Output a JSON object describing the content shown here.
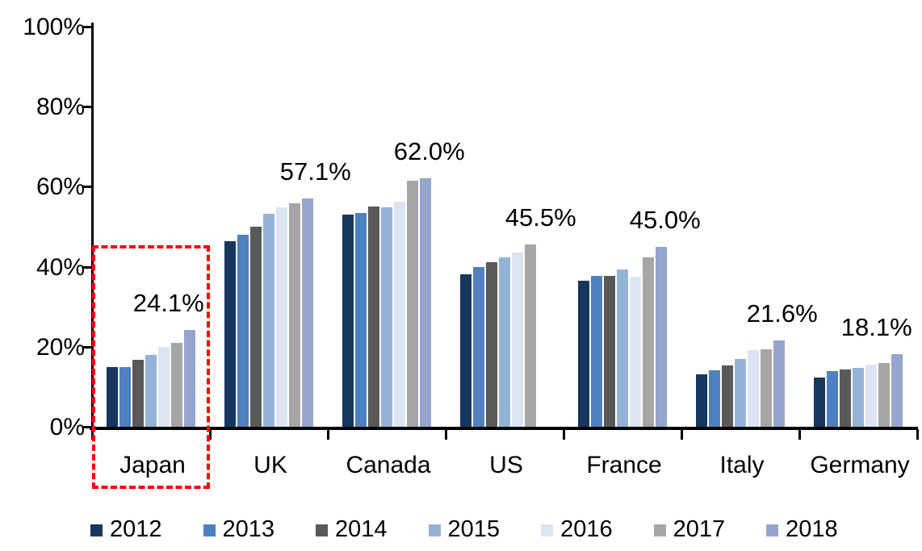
{
  "chart_data": {
    "type": "bar",
    "title": "",
    "categories": [
      "Japan",
      "UK",
      "Canada",
      "US",
      "France",
      "Italy",
      "Germany"
    ],
    "series": [
      {
        "name": "2012",
        "color": "#17375E",
        "values": [
          14.9,
          46.3,
          53.1,
          38.2,
          36.5,
          13.2,
          12.4
        ]
      },
      {
        "name": "2013",
        "color": "#4E81BD",
        "values": [
          15.0,
          47.9,
          53.5,
          39.9,
          37.8,
          14.1,
          13.9
        ]
      },
      {
        "name": "2014",
        "color": "#595959",
        "values": [
          16.7,
          50.0,
          55.1,
          41.1,
          37.7,
          15.4,
          14.4
        ]
      },
      {
        "name": "2015",
        "color": "#95B3D7",
        "values": [
          18.0,
          53.3,
          54.9,
          42.3,
          39.4,
          17.0,
          14.7
        ]
      },
      {
        "name": "2016",
        "color": "#DBE5F1",
        "values": [
          19.9,
          54.9,
          56.3,
          43.6,
          37.5,
          19.1,
          15.5
        ]
      },
      {
        "name": "2017",
        "color": "#A6A6A6",
        "values": [
          21.0,
          55.9,
          61.5,
          45.5,
          42.4,
          19.3,
          16.0
        ]
      },
      {
        "name": "2018",
        "color": "#95A5CE",
        "values": [
          24.1,
          57.1,
          62.0,
          null,
          45.0,
          21.6,
          18.1
        ]
      }
    ],
    "data_labels": [
      "24.1%",
      "57.1%",
      "62.0%",
      "45.5%",
      "45.0%",
      "21.6%",
      "18.1%"
    ],
    "y_axis": {
      "min": 0,
      "max": 100,
      "tick_values": [
        0,
        20,
        40,
        60,
        80,
        100
      ],
      "tick_labels": [
        "0%",
        "20%",
        "40%",
        "60%",
        "80%",
        "100%"
      ]
    },
    "legend": [
      "2012",
      "2013",
      "2014",
      "2015",
      "2016",
      "2017",
      "2018"
    ],
    "legend_position": "bottom",
    "grid": false,
    "annotations": {
      "highlight_box": {
        "category": "Japan",
        "color": "#FF0000",
        "style": "dashed"
      }
    },
    "axis_color": "#000000",
    "text_color": "#000000"
  }
}
